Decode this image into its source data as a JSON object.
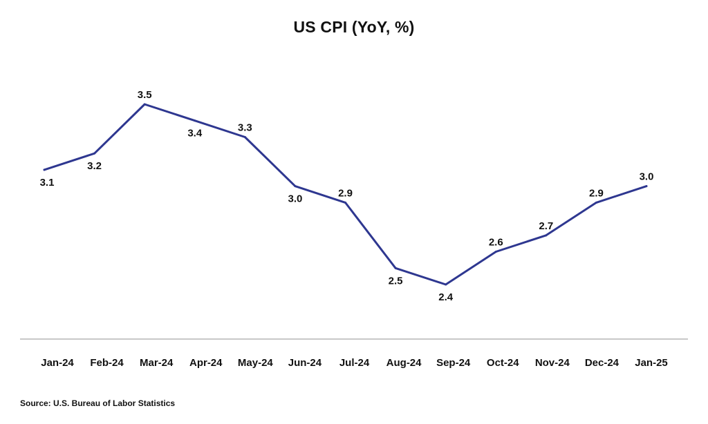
{
  "chart_data": {
    "type": "line",
    "title": "US CPI (YoY, %)",
    "xlabel": "",
    "ylabel": "",
    "categories": [
      "Jan-24",
      "Feb-24",
      "Mar-24",
      "Apr-24",
      "May-24",
      "Jun-24",
      "Jul-24",
      "Aug-24",
      "Sep-24",
      "Oct-24",
      "Nov-24",
      "Dec-24",
      "Jan-25"
    ],
    "series": [
      {
        "values": [
          3.1,
          3.2,
          3.5,
          3.4,
          3.3,
          3.0,
          2.9,
          2.5,
          2.4,
          2.6,
          2.7,
          2.9,
          3.0
        ],
        "labels": [
          "3.1",
          "3.2",
          "3.5",
          "3.4",
          "3.3",
          "3.0",
          "2.9",
          "2.5",
          "2.4",
          "2.6",
          "2.7",
          "2.9",
          "3.0"
        ],
        "label_position": [
          "below",
          "below",
          "above",
          "below",
          "above",
          "below",
          "above",
          "below",
          "below",
          "above",
          "above",
          "above",
          "above"
        ],
        "color": "#2e3790"
      }
    ],
    "ylim": [
      2.1,
      3.6
    ],
    "grid": false,
    "legend": "none",
    "baseline_color": "#b5b5b5"
  },
  "source": "Source: U.S. Bureau of Labor Statistics"
}
